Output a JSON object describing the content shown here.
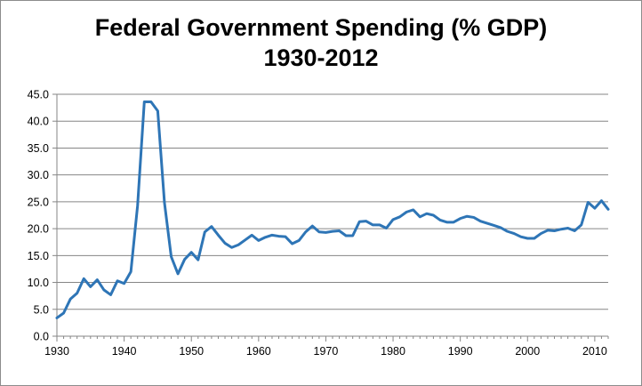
{
  "chart_data": {
    "type": "line",
    "title": "Federal Government Spending (% GDP)",
    "subtitle": "1930-2012",
    "xlabel": "",
    "ylabel": "",
    "xlim": [
      1930,
      2012
    ],
    "ylim": [
      0,
      45
    ],
    "y_ticks": [
      "0.0",
      "5.0",
      "10.0",
      "15.0",
      "20.0",
      "25.0",
      "30.0",
      "35.0",
      "40.0",
      "45.0"
    ],
    "x_ticks": [
      "1930",
      "1940",
      "1950",
      "1960",
      "1970",
      "1980",
      "1990",
      "2000",
      "2010"
    ],
    "grid": "horizontal",
    "legend": "none",
    "series": [
      {
        "color": "#2e75b6",
        "x": [
          1930,
          1931,
          1932,
          1933,
          1934,
          1935,
          1936,
          1937,
          1938,
          1939,
          1940,
          1941,
          1942,
          1943,
          1944,
          1945,
          1946,
          1947,
          1948,
          1949,
          1950,
          1951,
          1952,
          1953,
          1954,
          1955,
          1956,
          1957,
          1958,
          1959,
          1960,
          1961,
          1962,
          1963,
          1964,
          1965,
          1966,
          1967,
          1968,
          1969,
          1970,
          1971,
          1972,
          1973,
          1974,
          1975,
          1976,
          1977,
          1978,
          1979,
          1980,
          1981,
          1982,
          1983,
          1984,
          1985,
          1986,
          1987,
          1988,
          1989,
          1990,
          1991,
          1992,
          1993,
          1994,
          1995,
          1996,
          1997,
          1998,
          1999,
          2000,
          2001,
          2002,
          2003,
          2004,
          2005,
          2006,
          2007,
          2008,
          2009,
          2010,
          2011,
          2012
        ],
        "values": [
          3.4,
          4.3,
          6.9,
          8.0,
          10.7,
          9.2,
          10.5,
          8.6,
          7.7,
          10.3,
          9.8,
          12.0,
          24.3,
          43.6,
          43.6,
          41.9,
          24.8,
          14.8,
          11.6,
          14.3,
          15.6,
          14.2,
          19.4,
          20.4,
          18.8,
          17.3,
          16.5,
          17.0,
          17.9,
          18.8,
          17.8,
          18.4,
          18.8,
          18.6,
          18.5,
          17.2,
          17.8,
          19.4,
          20.5,
          19.4,
          19.3,
          19.5,
          19.6,
          18.7,
          18.7,
          21.3,
          21.4,
          20.7,
          20.7,
          20.1,
          21.7,
          22.2,
          23.1,
          23.5,
          22.2,
          22.8,
          22.5,
          21.6,
          21.2,
          21.2,
          21.9,
          22.3,
          22.1,
          21.4,
          21.0,
          20.6,
          20.2,
          19.5,
          19.1,
          18.5,
          18.2,
          18.2,
          19.1,
          19.7,
          19.6,
          19.9,
          20.1,
          19.6,
          20.7,
          24.9,
          23.8,
          25.2,
          23.6
        ]
      }
    ]
  }
}
